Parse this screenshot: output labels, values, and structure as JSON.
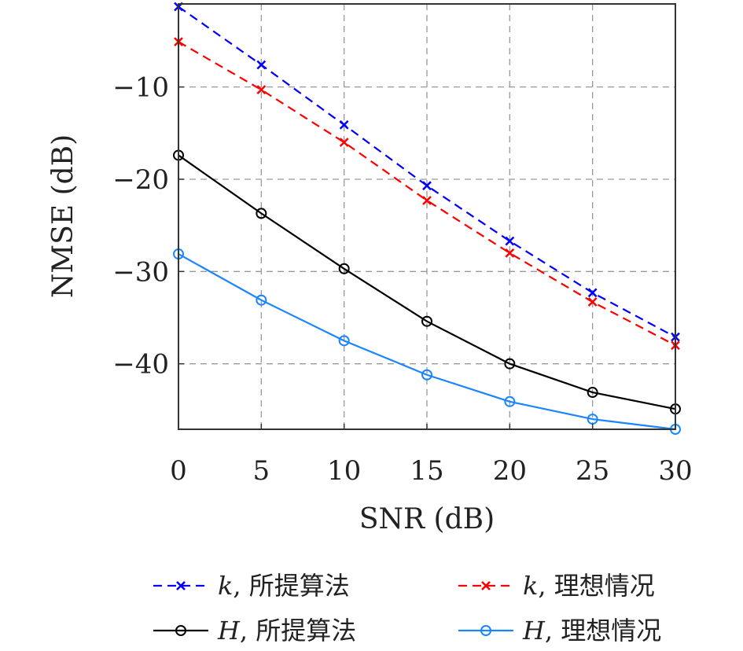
{
  "chart_data": {
    "type": "line",
    "title": "",
    "xlabel": "SNR (dB)",
    "ylabel": "NMSE (dB)",
    "x": [
      0,
      5,
      10,
      15,
      20,
      25,
      30
    ],
    "xlim": [
      0,
      30
    ],
    "ylim": [
      -47.1,
      -1
    ],
    "xticks": [
      "0",
      "5",
      "10",
      "15",
      "20",
      "25",
      "30"
    ],
    "yticks": [
      "−10",
      "−20",
      "−30",
      "−40"
    ],
    "ytick_values": [
      -10,
      -20,
      -30,
      -40
    ],
    "grid": true,
    "legend_position": "bottom-outside",
    "series": [
      {
        "name": "k, 所提算法",
        "math": "k",
        "label": ", 所提算法",
        "color": "#0000ff",
        "style": "dashed",
        "marker": "x",
        "values": [
          -1.3,
          -7.6,
          -14.1,
          -20.7,
          -26.7,
          -32.3,
          -37.1
        ]
      },
      {
        "name": "k, 理想情况",
        "math": "k",
        "label": ", 理想情况",
        "color": "#ff0000",
        "style": "dashed",
        "marker": "x",
        "values": [
          -5.1,
          -10.3,
          -16.0,
          -22.3,
          -28.0,
          -33.3,
          -38.0
        ]
      },
      {
        "name": "H, 所提算法",
        "math": "H",
        "label": ", 所提算法",
        "color": "#000000",
        "style": "solid",
        "marker": "o",
        "values": [
          -17.4,
          -23.7,
          -29.7,
          -35.4,
          -40.0,
          -43.1,
          -44.9
        ]
      },
      {
        "name": "H, 理想情况",
        "math": "H",
        "label": ", 理想情况",
        "color": "#1a85ff",
        "style": "solid",
        "marker": "o",
        "values": [
          -28.1,
          -33.1,
          -37.5,
          -41.2,
          -44.1,
          -46.0,
          -47.1
        ]
      }
    ]
  }
}
